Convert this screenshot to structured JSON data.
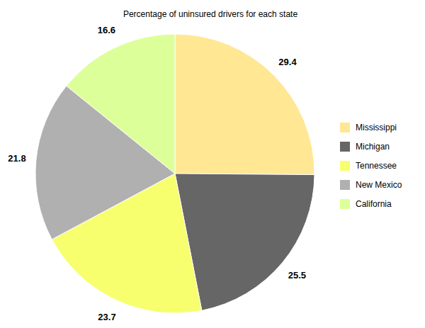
{
  "chart_data": {
    "type": "pie",
    "title": "Percentage of uninsured drivers for each state",
    "categories": [
      "Mississippi",
      "Michigan",
      "Tennessee",
      "New Mexico",
      "California"
    ],
    "values": [
      29.4,
      25.5,
      23.7,
      21.8,
      16.6
    ],
    "colors": [
      "#ffe794",
      "#666666",
      "#f7ff6f",
      "#b0b0b0",
      "#ddff99"
    ],
    "data_labels": true,
    "legend": "right"
  }
}
